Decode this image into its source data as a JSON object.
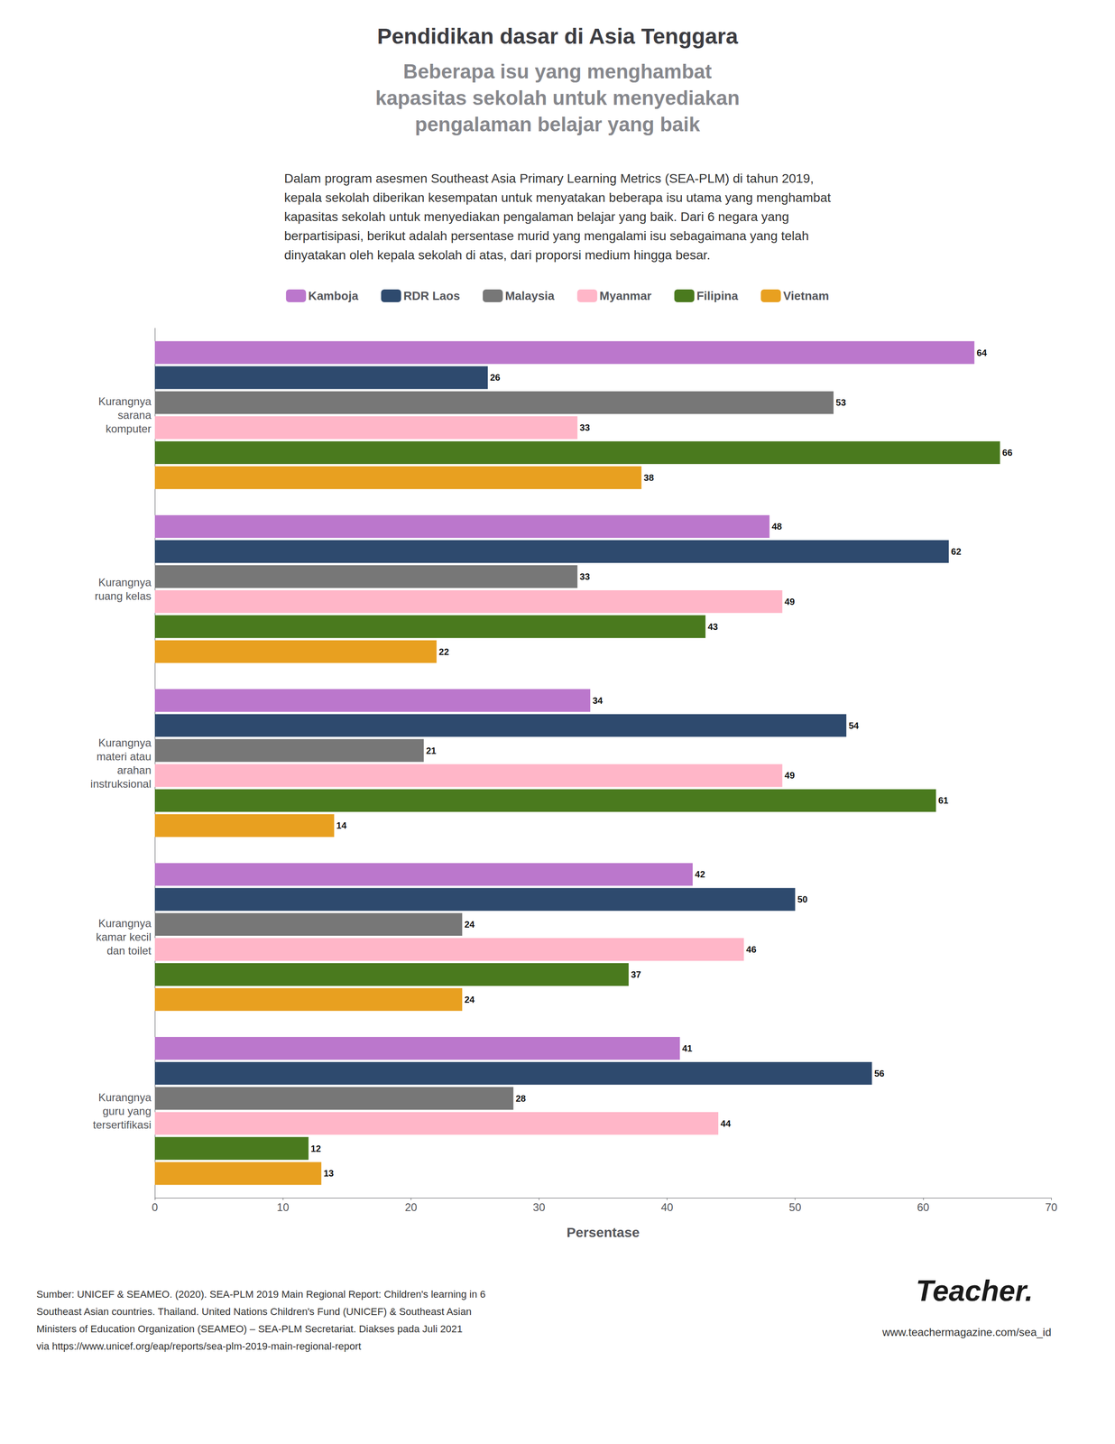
{
  "chart_data": {
    "type": "bar",
    "orientation": "horizontal",
    "title": "Pendidikan dasar di Asia Tenggara",
    "subtitle": "Beberapa isu yang menghambat\nkapasitas sekolah untuk menyediakan\npengalaman belajar yang baik",
    "annotations": [
      "Dalam program asesmen Southeast Asia Primary Learning Metrics (SEA-PLM) di tahun 2019,\nkepala sekolah diberikan kesempatan untuk menyatakan beberapa isu utama yang menghambat\nkapasitas sekolah untuk menyediakan pengalaman belajar yang baik. Dari 6 negara yang\nberpartisipasi, berikut adalah persentase murid yang mengalami isu sebagaimana yang telah\ndinyatakan oleh kepala sekolah di atas, dari proporsi medium hingga besar.",
      "Sumber: UNICEF & SEAMEO. (2020). SEA-PLM 2019 Main Regional Report: Children's learning in 6\nSoutheast Asian countries. Thailand. United Nations Children's Fund (UNICEF) & Southeast Asian\nMinisters of Education Organization (SEAMEO) – SEA-PLM Secretariat. Diakses pada Juli 2021\nvia https://www.unicef.org/eap/reports/sea-plm-2019-main-regional-report",
      "Teacher.",
      "www.teachermagazine.com/sea_id"
    ],
    "categories": [
      "Kurangnya\nsarana\nkomputer",
      "Kurangnya\nruang kelas",
      "Kurangnya\nmateri atau\narahan\ninstruksional",
      "Kurangnya\nkamar kecil\ndan toilet",
      "Kurangnya\nguru yang\ntersertifikasi"
    ],
    "series": [
      {
        "name": "Kamboja",
        "color": "#BB77CC",
        "values": [
          64,
          48,
          34,
          42,
          41
        ]
      },
      {
        "name": "RDR Laos",
        "color": "#2E4A6E",
        "values": [
          26,
          62,
          54,
          50,
          56
        ]
      },
      {
        "name": "Malaysia",
        "color": "#777777",
        "values": [
          53,
          33,
          21,
          24,
          28
        ]
      },
      {
        "name": "Myanmar",
        "color": "#FFB6C8",
        "values": [
          33,
          49,
          49,
          46,
          44
        ]
      },
      {
        "name": "Filipina",
        "color": "#4A7A1E",
        "values": [
          66,
          43,
          61,
          37,
          12
        ]
      },
      {
        "name": "Vietnam",
        "color": "#E8A020",
        "values": [
          38,
          22,
          14,
          24,
          13
        ]
      }
    ],
    "xlabel": "Persentase",
    "xlim": [
      0,
      70
    ],
    "xticks": [
      0,
      10,
      20,
      30,
      40,
      50,
      60,
      70
    ],
    "data_labels": true,
    "grid": false,
    "legend": "top"
  }
}
